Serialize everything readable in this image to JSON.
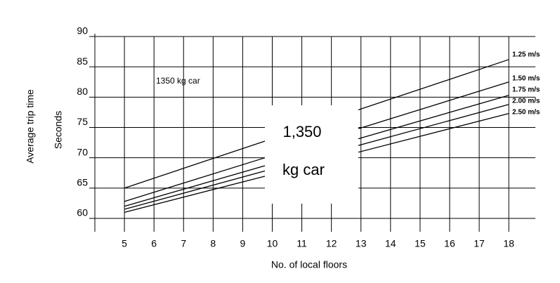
{
  "chart_data": {
    "type": "line",
    "xlabel": "No. of local floors",
    "ylabel": "Average trip time",
    "ylabel2": "Seconds",
    "x": [
      5,
      18
    ],
    "series": [
      {
        "name": "1.25 m/s",
        "color": "#000000",
        "values": [
          65,
          86.2
        ]
      },
      {
        "name": "1.50 m/s",
        "color": "#000000",
        "values": [
          62.8,
          82.5
        ]
      },
      {
        "name": "1.75 m/s",
        "color": "#000000",
        "values": [
          62,
          80.3
        ]
      },
      {
        "name": "2.00 m/s",
        "color": "#000000",
        "values": [
          61.5,
          78.8
        ]
      },
      {
        "name": "2.50 m/s",
        "color": "#000000",
        "values": [
          61,
          77.3
        ]
      }
    ],
    "annotations": [
      "1350 kg car",
      "1,350",
      "kg car"
    ],
    "xlim": [
      4,
      18.9
    ],
    "ylim": [
      57.8,
      90
    ],
    "xticks": [
      5,
      6,
      7,
      8,
      9,
      10,
      11,
      12,
      13,
      14,
      15,
      16,
      17,
      18
    ],
    "yticks": [
      60,
      65,
      70,
      75,
      80,
      85,
      90
    ],
    "grid": true
  }
}
